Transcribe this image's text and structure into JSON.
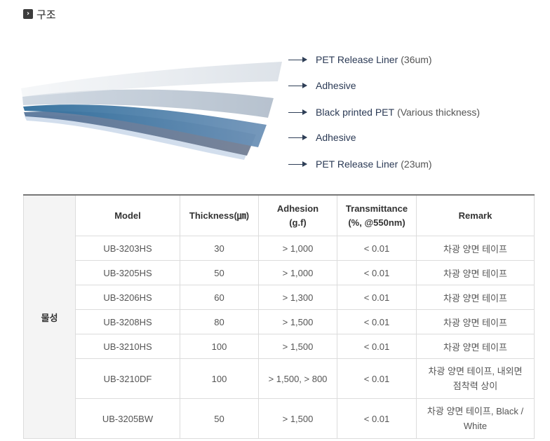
{
  "section": {
    "title": "구조"
  },
  "layers": [
    {
      "name": "PET Release Liner",
      "spec": "(36um)"
    },
    {
      "name": "Adhesive",
      "spec": ""
    },
    {
      "name": "Black printed PET",
      "spec": "(Various thickness)"
    },
    {
      "name": "Adhesive",
      "spec": ""
    },
    {
      "name": "PET Release Liner",
      "spec": "(23um)"
    }
  ],
  "colors": {
    "film_light": "#dde3ea",
    "film_blue": "#4d7fa8",
    "film_dark": "#5c6a80",
    "accent_text": "#2b3a55"
  },
  "table": {
    "group_label": "물성",
    "headers": {
      "model": "Model",
      "thickness": "Thickness(㎛)",
      "adhesion_1": "Adhesion",
      "adhesion_2": "(g.f)",
      "trans_1": "Transmittance",
      "trans_2": "(%, @550nm)",
      "remark": "Remark"
    },
    "rows": [
      {
        "model": "UB-3203HS",
        "thickness": "30",
        "adhesion": "> 1,000",
        "transmittance": "< 0.01",
        "remark_1": "차광 양면 테이프",
        "remark_2": ""
      },
      {
        "model": "UB-3205HS",
        "thickness": "50",
        "adhesion": "> 1,000",
        "transmittance": "< 0.01",
        "remark_1": "차광 양면 테이프",
        "remark_2": ""
      },
      {
        "model": "UB-3206HS",
        "thickness": "60",
        "adhesion": "> 1,300",
        "transmittance": "< 0.01",
        "remark_1": "차광 양면 테이프",
        "remark_2": ""
      },
      {
        "model": "UB-3208HS",
        "thickness": "80",
        "adhesion": "> 1,500",
        "transmittance": "< 0.01",
        "remark_1": "차광 양면 테이프",
        "remark_2": ""
      },
      {
        "model": "UB-3210HS",
        "thickness": "100",
        "adhesion": "> 1,500",
        "transmittance": "< 0.01",
        "remark_1": "차광 양면 테이프",
        "remark_2": ""
      },
      {
        "model": "UB-3210DF",
        "thickness": "100",
        "adhesion": "> 1,500, > 800",
        "transmittance": "< 0.01",
        "remark_1": "차광 양면 테이프, 내외면",
        "remark_2": "점착력 상이"
      },
      {
        "model": "UB-3205BW",
        "thickness": "50",
        "adhesion": "> 1,500",
        "transmittance": "< 0.01",
        "remark_1": "차광 양면 테이프, Black /",
        "remark_2": "White"
      }
    ]
  }
}
